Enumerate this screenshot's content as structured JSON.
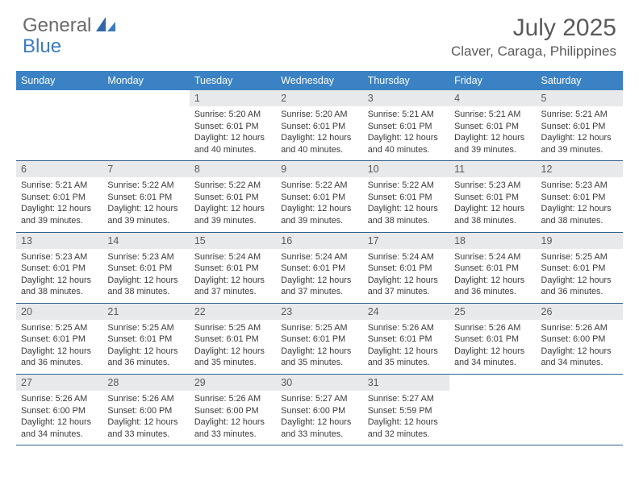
{
  "brand": {
    "part1": "General",
    "part2": "Blue"
  },
  "title": "July 2025",
  "location": "Claver, Caraga, Philippines",
  "colors": {
    "header_bg": "#3b82c4",
    "header_text": "#ffffff",
    "daynum_bg": "#e8e9ea",
    "border": "#2f5f8f",
    "brand_gray": "#6a6a6a",
    "brand_blue": "#3a7bbf",
    "title_color": "#5a5a5a"
  },
  "day_headers": [
    "Sunday",
    "Monday",
    "Tuesday",
    "Wednesday",
    "Thursday",
    "Friday",
    "Saturday"
  ],
  "weeks": [
    {
      "nums": [
        "",
        "",
        "1",
        "2",
        "3",
        "4",
        "5"
      ],
      "cells": [
        null,
        null,
        {
          "sunrise": "5:20 AM",
          "sunset": "6:01 PM",
          "daylight": "12 hours and 40 minutes."
        },
        {
          "sunrise": "5:20 AM",
          "sunset": "6:01 PM",
          "daylight": "12 hours and 40 minutes."
        },
        {
          "sunrise": "5:21 AM",
          "sunset": "6:01 PM",
          "daylight": "12 hours and 40 minutes."
        },
        {
          "sunrise": "5:21 AM",
          "sunset": "6:01 PM",
          "daylight": "12 hours and 39 minutes."
        },
        {
          "sunrise": "5:21 AM",
          "sunset": "6:01 PM",
          "daylight": "12 hours and 39 minutes."
        }
      ]
    },
    {
      "nums": [
        "6",
        "7",
        "8",
        "9",
        "10",
        "11",
        "12"
      ],
      "cells": [
        {
          "sunrise": "5:21 AM",
          "sunset": "6:01 PM",
          "daylight": "12 hours and 39 minutes."
        },
        {
          "sunrise": "5:22 AM",
          "sunset": "6:01 PM",
          "daylight": "12 hours and 39 minutes."
        },
        {
          "sunrise": "5:22 AM",
          "sunset": "6:01 PM",
          "daylight": "12 hours and 39 minutes."
        },
        {
          "sunrise": "5:22 AM",
          "sunset": "6:01 PM",
          "daylight": "12 hours and 39 minutes."
        },
        {
          "sunrise": "5:22 AM",
          "sunset": "6:01 PM",
          "daylight": "12 hours and 38 minutes."
        },
        {
          "sunrise": "5:23 AM",
          "sunset": "6:01 PM",
          "daylight": "12 hours and 38 minutes."
        },
        {
          "sunrise": "5:23 AM",
          "sunset": "6:01 PM",
          "daylight": "12 hours and 38 minutes."
        }
      ]
    },
    {
      "nums": [
        "13",
        "14",
        "15",
        "16",
        "17",
        "18",
        "19"
      ],
      "cells": [
        {
          "sunrise": "5:23 AM",
          "sunset": "6:01 PM",
          "daylight": "12 hours and 38 minutes."
        },
        {
          "sunrise": "5:23 AM",
          "sunset": "6:01 PM",
          "daylight": "12 hours and 38 minutes."
        },
        {
          "sunrise": "5:24 AM",
          "sunset": "6:01 PM",
          "daylight": "12 hours and 37 minutes."
        },
        {
          "sunrise": "5:24 AM",
          "sunset": "6:01 PM",
          "daylight": "12 hours and 37 minutes."
        },
        {
          "sunrise": "5:24 AM",
          "sunset": "6:01 PM",
          "daylight": "12 hours and 37 minutes."
        },
        {
          "sunrise": "5:24 AM",
          "sunset": "6:01 PM",
          "daylight": "12 hours and 36 minutes."
        },
        {
          "sunrise": "5:25 AM",
          "sunset": "6:01 PM",
          "daylight": "12 hours and 36 minutes."
        }
      ]
    },
    {
      "nums": [
        "20",
        "21",
        "22",
        "23",
        "24",
        "25",
        "26"
      ],
      "cells": [
        {
          "sunrise": "5:25 AM",
          "sunset": "6:01 PM",
          "daylight": "12 hours and 36 minutes."
        },
        {
          "sunrise": "5:25 AM",
          "sunset": "6:01 PM",
          "daylight": "12 hours and 36 minutes."
        },
        {
          "sunrise": "5:25 AM",
          "sunset": "6:01 PM",
          "daylight": "12 hours and 35 minutes."
        },
        {
          "sunrise": "5:25 AM",
          "sunset": "6:01 PM",
          "daylight": "12 hours and 35 minutes."
        },
        {
          "sunrise": "5:26 AM",
          "sunset": "6:01 PM",
          "daylight": "12 hours and 35 minutes."
        },
        {
          "sunrise": "5:26 AM",
          "sunset": "6:01 PM",
          "daylight": "12 hours and 34 minutes."
        },
        {
          "sunrise": "5:26 AM",
          "sunset": "6:00 PM",
          "daylight": "12 hours and 34 minutes."
        }
      ]
    },
    {
      "nums": [
        "27",
        "28",
        "29",
        "30",
        "31",
        "",
        ""
      ],
      "cells": [
        {
          "sunrise": "5:26 AM",
          "sunset": "6:00 PM",
          "daylight": "12 hours and 34 minutes."
        },
        {
          "sunrise": "5:26 AM",
          "sunset": "6:00 PM",
          "daylight": "12 hours and 33 minutes."
        },
        {
          "sunrise": "5:26 AM",
          "sunset": "6:00 PM",
          "daylight": "12 hours and 33 minutes."
        },
        {
          "sunrise": "5:27 AM",
          "sunset": "6:00 PM",
          "daylight": "12 hours and 33 minutes."
        },
        {
          "sunrise": "5:27 AM",
          "sunset": "5:59 PM",
          "daylight": "12 hours and 32 minutes."
        },
        null,
        null
      ]
    }
  ],
  "labels": {
    "sunrise": "Sunrise: ",
    "sunset": "Sunset: ",
    "daylight": "Daylight: "
  }
}
